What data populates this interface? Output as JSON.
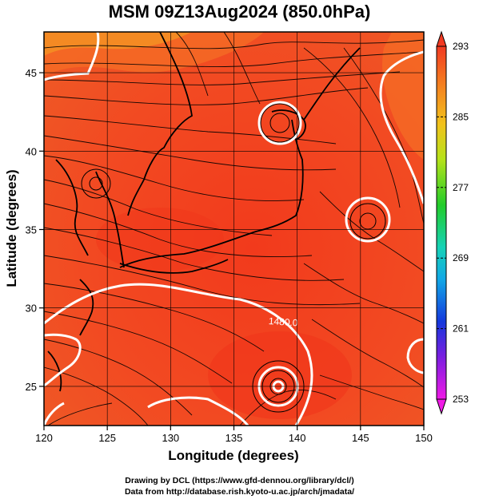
{
  "title": "MSM 09Z13Aug2024 (850.0hPa)",
  "chart_data": {
    "type": "heatmap",
    "title": "MSM 09Z13Aug2024 (850.0hPa)",
    "xlabel": "Longitude (degrees)",
    "ylabel": "Latitude  (degrees)",
    "xlim": [
      120,
      150
    ],
    "ylim": [
      22.5,
      47.6
    ],
    "xticks": [
      "120",
      "125",
      "130",
      "135",
      "140",
      "145",
      "150"
    ],
    "yticks": [
      "25",
      "30",
      "35",
      "40",
      "45"
    ],
    "xtick_values": [
      120,
      125,
      130,
      135,
      140,
      145,
      150
    ],
    "ytick_values": [
      25,
      30,
      35,
      40,
      45
    ],
    "grid": true,
    "colorbar": {
      "labels": [
        "293",
        "285",
        "277",
        "269",
        "261",
        "253"
      ],
      "values": [
        293,
        285,
        277,
        269,
        261,
        253
      ],
      "range": [
        253,
        293
      ]
    },
    "contour_label": "1480.0",
    "contour_label_position": [
      139,
      29.1
    ],
    "cyclone_centers": [
      {
        "lon": 138.7,
        "lat": 25.2
      },
      {
        "lon": 145.8,
        "lat": 36.4
      },
      {
        "lon": 138.7,
        "lat": 42.6
      }
    ]
  },
  "credits": {
    "line1": "Drawing by DCL (https://www.gfd-dennou.org/library/dcl/)",
    "line2": "Data from http://database.rish.kyoto-u.ac.jp/arch/jmadata/"
  }
}
